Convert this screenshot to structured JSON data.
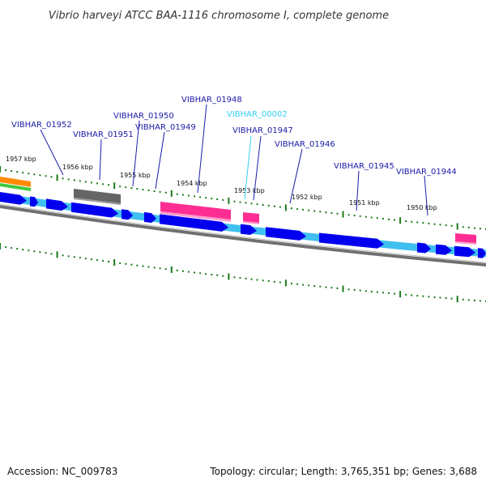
{
  "title": "Vibrio harveyi ATCC BAA-1116 chromosome I, complete genome",
  "footer": {
    "accession": "Accession: NC_009783",
    "topology": "Topology: circular; Length: 3,765,351 bp; Genes: 3,688"
  },
  "colors": {
    "cds": "#0000ee",
    "cds_track": "#3fbff0",
    "trna": "#ff2d93",
    "rrna": "#ff8a00",
    "rrna_secondary": "#3cc83c",
    "gray_feature": "#666666",
    "backbone": "#707070",
    "tick": "#1a7a1a",
    "label": "#1a1aa6",
    "label_highlight": "#33ccee"
  },
  "kbp_labels": [
    "1957 kbp",
    "1956 kbp",
    "1955 kbp",
    "1954 kbp",
    "1953 kbp",
    "1952 kbp",
    "1951 kbp",
    "1950 kbp"
  ],
  "gene_labels": [
    {
      "text": "VIBHAR_01952",
      "highlight": false
    },
    {
      "text": "VIBHAR_01951",
      "highlight": false
    },
    {
      "text": "VIBHAR_01950",
      "highlight": false
    },
    {
      "text": "VIBHAR_01949",
      "highlight": false
    },
    {
      "text": "VIBHAR_01948",
      "highlight": false
    },
    {
      "text": "VIBHAR_00002",
      "highlight": true
    },
    {
      "text": "VIBHAR_01947",
      "highlight": false
    },
    {
      "text": "VIBHAR_01946",
      "highlight": false
    },
    {
      "text": "VIBHAR_01945",
      "highlight": false
    },
    {
      "text": "VIBHAR_01944",
      "highlight": false
    }
  ]
}
